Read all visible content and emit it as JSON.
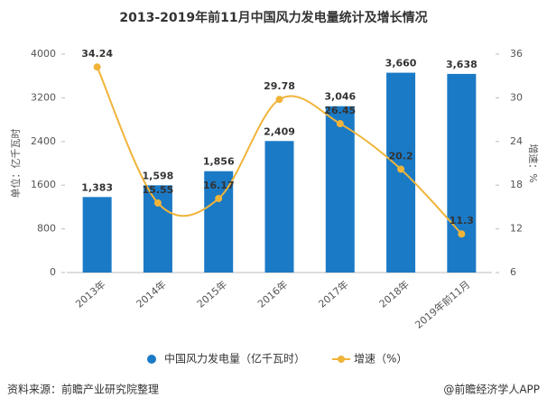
{
  "chart_data": {
    "type": "bar_line",
    "title": "2013-2019年前11月中国风力发电量统计及增长情况",
    "categories": [
      "2013年",
      "2014年",
      "2015年",
      "2016年",
      "2017年",
      "2018年",
      "2019年前11月"
    ],
    "series": [
      {
        "name": "中国风力发电量（亿千瓦时）",
        "color": "#1b7ac6",
        "type": "bar",
        "values": [
          1383,
          1598,
          1856,
          2409,
          3046,
          3660,
          3638
        ],
        "value_labels": [
          "1,383",
          "1,598",
          "1,856",
          "2,409",
          "3,046",
          "3,660",
          "3,638"
        ]
      },
      {
        "name": "增速（%）",
        "color": "#f0b43a",
        "type": "line",
        "axis": "y2",
        "values": [
          34.24,
          15.55,
          16.17,
          29.78,
          26.45,
          20.2,
          11.3
        ]
      }
    ],
    "ylabel": "单位：亿千瓦时",
    "y2label": "增速：%",
    "ylim": [
      0,
      4000
    ],
    "yticks": [
      0,
      800,
      1600,
      2400,
      3200,
      4000
    ],
    "y2lim": [
      6,
      36
    ],
    "y2ticks": [
      6,
      12,
      18,
      24,
      30,
      36
    ],
    "source": "资料来源：前瞻产业研究院整理",
    "credit": "@前瞻经济学人APP"
  }
}
